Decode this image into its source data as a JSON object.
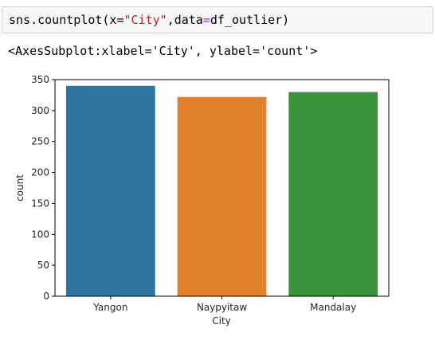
{
  "code_cell": {
    "prefix": "sns.countplot(x=",
    "x_value": "\"City\"",
    "comma": ",data",
    "equals": "=",
    "suffix": "df_outlier)"
  },
  "output": {
    "repr": "<AxesSubplot:xlabel='City', ylabel='count'>"
  },
  "chart_data": {
    "type": "bar",
    "categories": [
      "Yangon",
      "Naypyitaw",
      "Mandalay"
    ],
    "values": [
      340,
      322,
      330
    ],
    "colors": [
      "#3274a1",
      "#e1812c",
      "#3a923a"
    ],
    "xlabel": "City",
    "ylabel": "count",
    "ylim": [
      0,
      350
    ],
    "yticks": [
      0,
      50,
      100,
      150,
      200,
      250,
      300,
      350
    ],
    "grid": false,
    "legend": "none"
  }
}
